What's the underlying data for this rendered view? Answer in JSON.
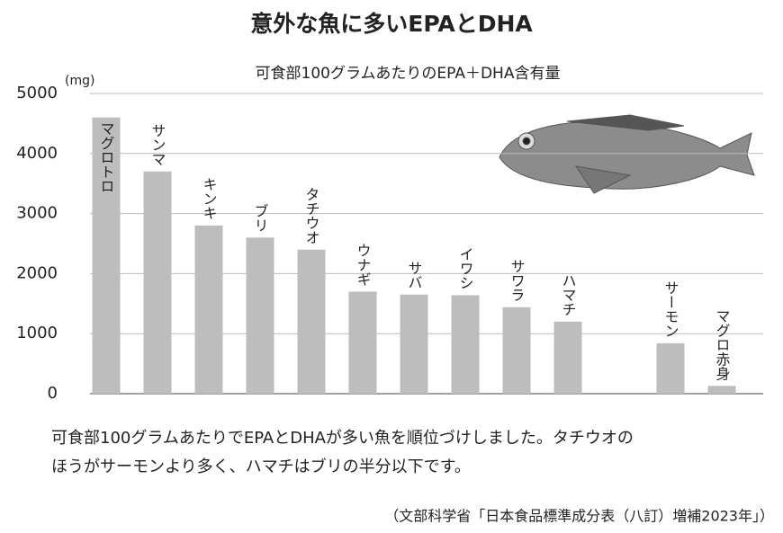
{
  "chart_data": {
    "type": "bar",
    "title": "意外な魚に多いEPAとDHA",
    "subtitle": "可食部100グラムあたりのEPA＋DHA含有量",
    "y_unit": "(mg)",
    "categories": [
      "マグロトロ",
      "サンマ",
      "キンキ",
      "ブリ",
      "タチウオ",
      "ウナギ",
      "サバ",
      "イワシ",
      "サワラ",
      "ハマチ",
      null,
      "サーモン",
      "マグロ赤身"
    ],
    "values": [
      4600,
      3700,
      2800,
      2600,
      2400,
      1700,
      1650,
      1640,
      1440,
      1200,
      null,
      840,
      130
    ],
    "color": "#bdbdbd",
    "ylim": [
      0,
      5000
    ],
    "yticks": [
      0,
      1000,
      2000,
      3000,
      4000,
      5000
    ],
    "grid": true,
    "caption": [
      "可食部100グラムあたりでEPAとDHAが多い魚を順位づけしました。タチウオの",
      "ほうがサーモンより多く、ハマチはブリの半分以下です。"
    ],
    "source": "（文部科学省「日本食品標準成分表（八訂）増補2023年」）"
  }
}
